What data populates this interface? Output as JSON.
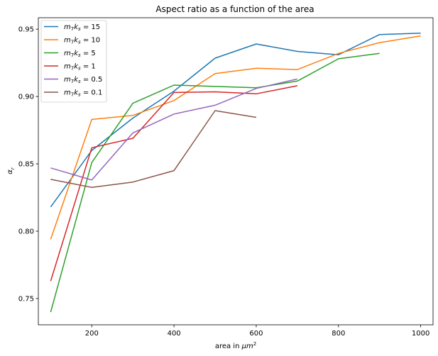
{
  "chart_data": {
    "type": "line",
    "title": "Aspect ratio as a function of the area",
    "xlabel_text": "area in ",
    "xlabel_unit": "μm",
    "xlabel_exp": "2",
    "ylabel": "α",
    "ylabel_sub": "r",
    "xlim": [
      70,
      1030
    ],
    "ylim": [
      0.7305,
      0.9585
    ],
    "xticks": [
      200,
      400,
      600,
      800,
      1000
    ],
    "yticks": [
      0.75,
      0.8,
      0.85,
      0.9,
      0.95
    ],
    "xtick_labels": [
      "200",
      "400",
      "600",
      "800",
      "1000"
    ],
    "ytick_labels": [
      "0.75",
      "0.80",
      "0.85",
      "0.90",
      "0.95"
    ],
    "grid": false,
    "legend_position": "top-left",
    "series": [
      {
        "name_prefix": "m",
        "name_sub1": "7",
        "name_k": "k",
        "name_sub2": "s",
        "name_value": " = 15",
        "color": "#1f77b4",
        "x": [
          100,
          200,
          300,
          400,
          500,
          600,
          700,
          800,
          900,
          1000
        ],
        "y": [
          0.818,
          0.86,
          0.884,
          0.904,
          0.9285,
          0.939,
          0.9335,
          0.931,
          0.946,
          0.947
        ]
      },
      {
        "name_prefix": "m",
        "name_sub1": "7",
        "name_k": "k",
        "name_sub2": "s",
        "name_value": " = 10",
        "color": "#ff7f0e",
        "x": [
          100,
          200,
          300,
          400,
          500,
          600,
          700,
          800,
          900,
          1000
        ],
        "y": [
          0.794,
          0.883,
          0.886,
          0.897,
          0.917,
          0.921,
          0.92,
          0.932,
          0.94,
          0.945
        ]
      },
      {
        "name_prefix": "m",
        "name_sub1": "7",
        "name_k": "k",
        "name_sub2": "s",
        "name_value": " = 5",
        "color": "#2ca02c",
        "x": [
          100,
          200,
          300,
          400,
          500,
          600,
          700,
          800,
          900
        ],
        "y": [
          0.74,
          0.851,
          0.895,
          0.9085,
          0.9075,
          0.9065,
          0.9115,
          0.928,
          0.932
        ]
      },
      {
        "name_prefix": "m",
        "name_sub1": "7",
        "name_k": "k",
        "name_sub2": "s",
        "name_value": " = 1",
        "color": "#d62728",
        "x": [
          100,
          200,
          300,
          400,
          500,
          600,
          700
        ],
        "y": [
          0.763,
          0.862,
          0.869,
          0.903,
          0.9035,
          0.902,
          0.908
        ]
      },
      {
        "name_prefix": "m",
        "name_sub1": "7",
        "name_k": "k",
        "name_sub2": "s",
        "name_value": " = 0.5",
        "color": "#9467bd",
        "x": [
          100,
          200,
          300,
          400,
          500,
          600,
          700
        ],
        "y": [
          0.847,
          0.838,
          0.873,
          0.887,
          0.8935,
          0.906,
          0.913
        ]
      },
      {
        "name_prefix": "m",
        "name_sub1": "7",
        "name_k": "k",
        "name_sub2": "s",
        "name_value": " = 0.1",
        "color": "#8c564b",
        "x": [
          100,
          200,
          300,
          400,
          500,
          600
        ],
        "y": [
          0.8385,
          0.8325,
          0.8365,
          0.845,
          0.8895,
          0.8845
        ]
      }
    ]
  }
}
